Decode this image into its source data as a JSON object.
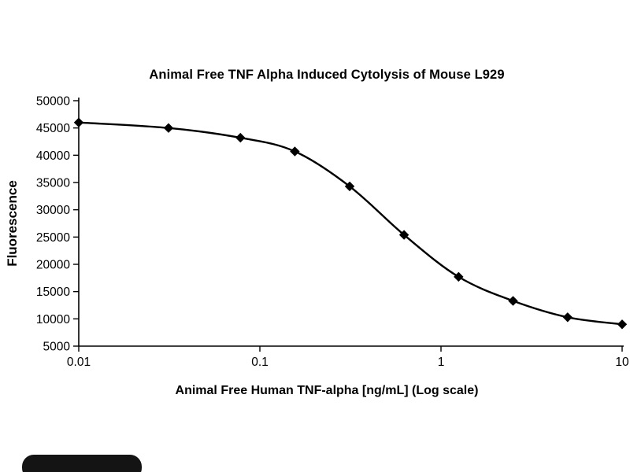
{
  "chart_data": {
    "type": "line",
    "title": "Animal Free TNF Alpha Induced Cytolysis of Mouse L929",
    "xlabel": "Animal Free Human TNF-alpha [ng/mL] (Log scale)",
    "ylabel": "Fluorescence",
    "x_scale": "log",
    "xlim": [
      0.01,
      10
    ],
    "ylim": [
      5000,
      50000
    ],
    "grid": false,
    "legend": null,
    "marker": "diamond",
    "line_color": "#000000",
    "marker_color": "#000000",
    "x_ticks": [
      0.01,
      0.1,
      1,
      10
    ],
    "x_tick_labels": [
      "0.01",
      "0.1",
      "1",
      "10"
    ],
    "y_ticks": [
      5000,
      10000,
      15000,
      20000,
      25000,
      30000,
      35000,
      40000,
      45000,
      50000
    ],
    "x": [
      0.01,
      0.0313,
      0.0781,
      0.156,
      0.313,
      0.625,
      1.25,
      2.5,
      5,
      10
    ],
    "y": [
      46000,
      45000,
      43200,
      40700,
      34300,
      25400,
      17700,
      13300,
      10300,
      9000
    ]
  },
  "decor": {
    "bottom_pill_color": "#141414"
  }
}
